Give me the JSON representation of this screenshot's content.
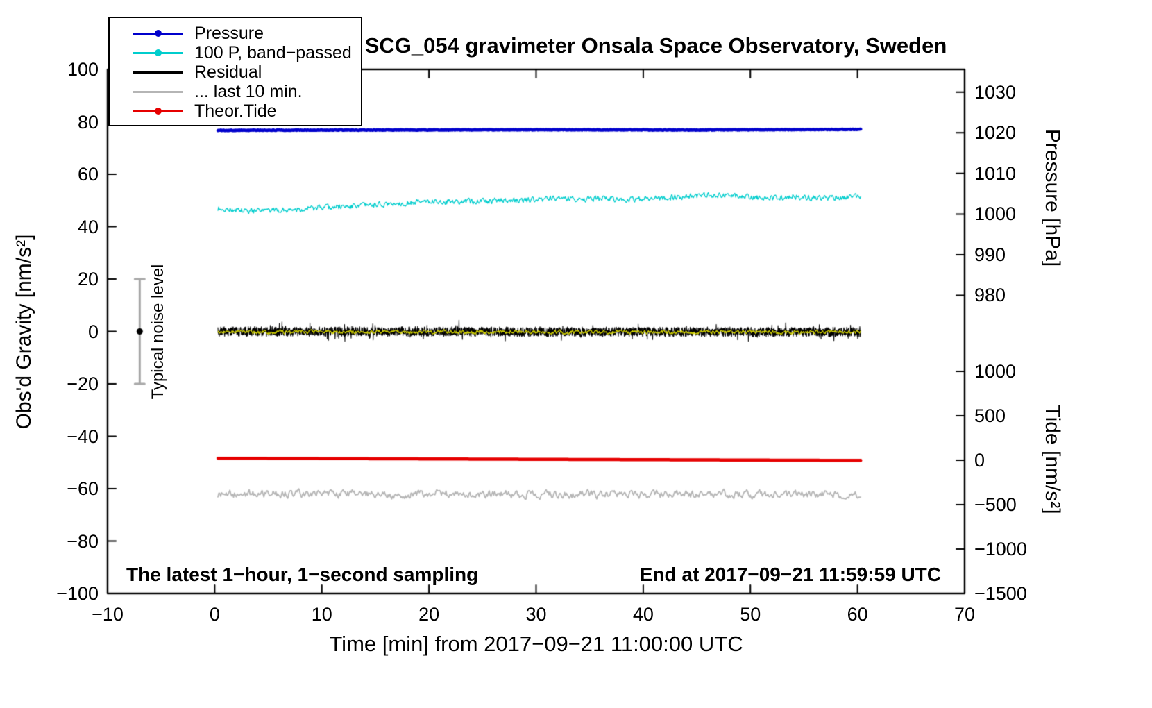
{
  "chart_data": {
    "type": "line",
    "title": "SCG_054 gravimeter Onsala Space Observatory, Sweden",
    "axes": {
      "x": {
        "label": "Time [min] from 2017−09−21 11:00:00 UTC",
        "min": -10,
        "max": 70,
        "ticks": [
          -10,
          0,
          10,
          20,
          30,
          40,
          50,
          60,
          70
        ]
      },
      "gravity": {
        "label": "Obs'd Gravity [nm/s²]",
        "min": -100,
        "max": 100,
        "ticks": [
          -100,
          -80,
          -60,
          -40,
          -20,
          0,
          20,
          40,
          60,
          80,
          100
        ]
      },
      "pressure": {
        "label": "Pressure [hPa]",
        "min": 980,
        "max": 1030,
        "ticks": [
          1030,
          1020,
          1010,
          1000,
          990,
          980
        ],
        "gravity_at_min": 13.8,
        "gravity_at_max": 91.3
      },
      "tide": {
        "label": "Tide [nm/s²]",
        "min": -1500,
        "max": 1000,
        "ticks": [
          1000,
          500,
          0,
          -500,
          -1000,
          -1500
        ],
        "gravity_at_min": -100,
        "gravity_at_max": -15.2
      }
    },
    "legend": [
      {
        "label": "Pressure",
        "color": "#0000cc",
        "marker": true
      },
      {
        "label": "100 P, band−passed",
        "color": "#00cdcd",
        "marker": true
      },
      {
        "label": "Residual",
        "color": "#000000",
        "marker": false
      },
      {
        "label": "... last 10 min.",
        "color": "#b5b5b5",
        "marker": false
      },
      {
        "label": "Theor.Tide",
        "color": "#e60000",
        "marker": true
      }
    ],
    "annotations": {
      "noise_bar": {
        "x": -7,
        "center": 0,
        "half_range": 20,
        "label": "Typical noise level"
      },
      "bottom_left": "The latest 1−hour, 1−second sampling",
      "bottom_right": "End at 2017−09−21 11:59:59 UTC"
    },
    "series": [
      {
        "id": "pressure",
        "axis": "pressure",
        "color": "#0000cc",
        "width": 4.5,
        "x_start": 0.3,
        "x_end": 60.3,
        "n": 1500,
        "seed": 101,
        "keypoints": [
          [
            0,
            1020.6
          ],
          [
            15,
            1020.7
          ],
          [
            30,
            1020.75
          ],
          [
            45,
            1020.7
          ],
          [
            60,
            1020.85
          ]
        ],
        "noise_amp": 0.08,
        "noise_corr": 0.4
      },
      {
        "id": "pressure-bandpassed",
        "axis": "gravity",
        "color": "#00cdcd",
        "width": 1.3,
        "x_start": 0.3,
        "x_end": 60.3,
        "n": 900,
        "seed": 202,
        "keypoints": [
          [
            0,
            47.0
          ],
          [
            3,
            45.9
          ],
          [
            5,
            46.0
          ],
          [
            7,
            46.5
          ],
          [
            10,
            47.2
          ],
          [
            13,
            47.9
          ],
          [
            15,
            48.3
          ],
          [
            18,
            49.0
          ],
          [
            20,
            49.8
          ],
          [
            22,
            49.4
          ],
          [
            25,
            49.8
          ],
          [
            28,
            50.0
          ],
          [
            30,
            50.3
          ],
          [
            32,
            51.0
          ],
          [
            34,
            50.4
          ],
          [
            36,
            50.8
          ],
          [
            38,
            50.3
          ],
          [
            40,
            50.8
          ],
          [
            43,
            51.2
          ],
          [
            46,
            52.2
          ],
          [
            48,
            51.8
          ],
          [
            50,
            51.2
          ],
          [
            52,
            50.8
          ],
          [
            54,
            51.4
          ],
          [
            56,
            50.9
          ],
          [
            58,
            51.1
          ],
          [
            60,
            51.4
          ]
        ],
        "noise_amp": 1.0,
        "noise_corr": 0.3
      },
      {
        "id": "residual-last10",
        "axis": "gravity",
        "color": "#b5b5b5",
        "width": 1.8,
        "x_start": 0.3,
        "x_end": 60.3,
        "n": 700,
        "seed": 505,
        "keypoints": [
          [
            0,
            -62.0
          ],
          [
            60,
            -62.3
          ]
        ],
        "noise_amp": 1.5,
        "noise_corr": 0.55
      },
      {
        "id": "theor-tide",
        "axis": "tide",
        "color": "#e60000",
        "width": 4.5,
        "x_start": 0.3,
        "x_end": 60.3,
        "n": 400,
        "seed": 606,
        "keypoints": [
          [
            0,
            22
          ],
          [
            60,
            -3
          ]
        ],
        "noise_amp": 0.0,
        "noise_corr": 0.0
      },
      {
        "id": "residual",
        "axis": "gravity",
        "color": "#000000",
        "width": 1.1,
        "x_start": 0.3,
        "x_end": 60.3,
        "n": 3600,
        "seed": 303,
        "keypoints": [
          [
            0,
            0
          ],
          [
            60,
            -0.2
          ]
        ],
        "noise_amp": 1.7,
        "noise_corr": 0.15,
        "spike_p": 0.05,
        "spike_amp": 2.6
      },
      {
        "id": "residual-mean",
        "axis": "gravity",
        "color": "#d4d400",
        "width": 1.3,
        "x_start": 0.3,
        "x_end": 60.3,
        "n": 1200,
        "seed": 404,
        "keypoints": [
          [
            0,
            -0.2
          ],
          [
            60,
            -0.3
          ]
        ],
        "noise_amp": 0.65,
        "noise_corr": 0.5
      }
    ]
  }
}
